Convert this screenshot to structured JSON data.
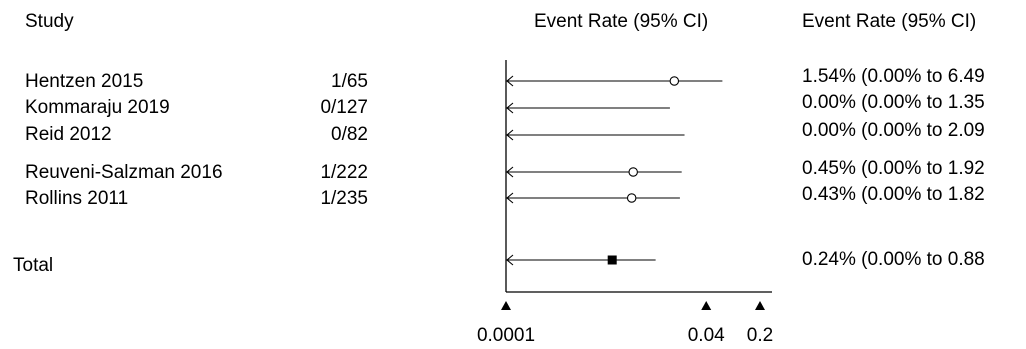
{
  "headers": {
    "study": "Study",
    "plot": "Event Rate (95% CI)",
    "ci": "Event Rate (95% CI)"
  },
  "studies": [
    {
      "name": "Hentzen 2015",
      "events": "1/65",
      "ci_text": "1.54% (0.00% to 6.49"
    },
    {
      "name": "Kommaraju 2019",
      "events": "0/127",
      "ci_text": "0.00% (0.00% to 1.35"
    },
    {
      "name": "Reid 2012",
      "events": "0/82",
      "ci_text": "0.00% (0.00% to 2.09"
    },
    {
      "name": "Reuveni-Salzman 2016",
      "events": "1/222",
      "ci_text": "0.45% (0.00% to 1.92"
    },
    {
      "name": "Rollins 2011",
      "events": "1/235",
      "ci_text": "0.43% (0.00% to 1.82"
    }
  ],
  "total": {
    "name": "Total",
    "ci_text": "0.24% (0.00% to 0.88"
  },
  "axis_ticks": [
    "0.0001",
    "0.04",
    "0.2"
  ],
  "chart_data": {
    "type": "forest",
    "scale": "log",
    "xlim": [
      0.0001,
      0.2
    ],
    "ticks": [
      0.0001,
      0.04,
      0.2
    ],
    "rows": [
      {
        "label": "Hentzen 2015",
        "estimate": 0.0154,
        "lower": 0.0,
        "upper": 0.0649,
        "marker": "circle"
      },
      {
        "label": "Kommaraju 2019",
        "estimate": 0.0,
        "lower": 0.0,
        "upper": 0.0135,
        "marker": "none"
      },
      {
        "label": "Reid 2012",
        "estimate": 0.0,
        "lower": 0.0,
        "upper": 0.0209,
        "marker": "none"
      },
      {
        "label": "Reuveni-Salzman 2016",
        "estimate": 0.0045,
        "lower": 0.0,
        "upper": 0.0192,
        "marker": "circle"
      },
      {
        "label": "Rollins 2011",
        "estimate": 0.0043,
        "lower": 0.0,
        "upper": 0.0182,
        "marker": "circle"
      },
      {
        "label": "Total",
        "estimate": 0.0024,
        "lower": 0.0,
        "upper": 0.0088,
        "marker": "square"
      }
    ]
  }
}
